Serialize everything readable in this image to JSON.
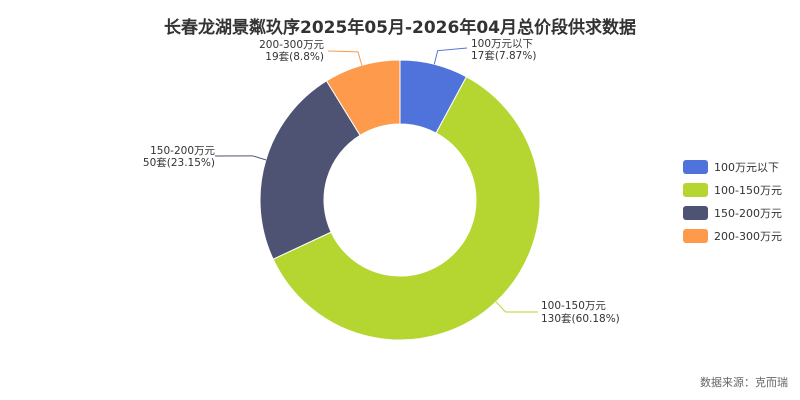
{
  "title": "长春龙湖景粼玖序2025年05月-2026年04月总价段供求数据",
  "source": "数据来源：克而瑞",
  "chart_data": {
    "type": "pie",
    "subtype": "donut",
    "title": "长春龙湖景粼玖序2025年05月-2026年04月总价段供求数据",
    "legend_position": "right",
    "categories": [
      "100万元以下",
      "100-150万元",
      "150-200万元",
      "200-300万元"
    ],
    "values": [
      17,
      130,
      50,
      19
    ],
    "percent_labels": [
      "7.87%",
      "60.18%",
      "23.15%",
      "8.8%"
    ],
    "value_labels": [
      "17套(7.87%)",
      "130套(60.18%)",
      "50套(23.15%)",
      "19套(8.8%)"
    ],
    "colors": [
      "#4f72db",
      "#b5d631",
      "#4e5273",
      "#fd9a4c"
    ],
    "unit": "套"
  }
}
